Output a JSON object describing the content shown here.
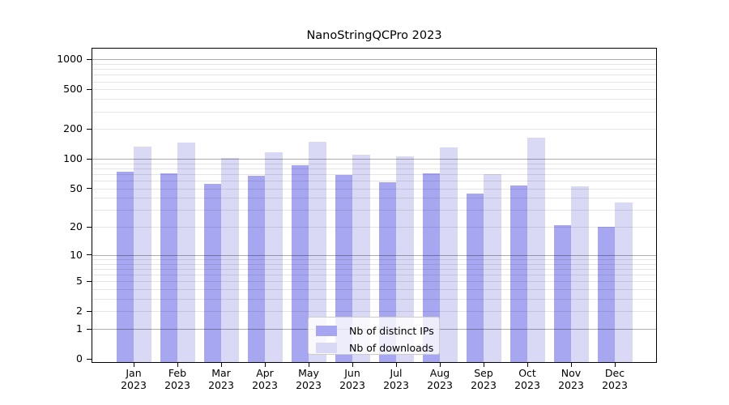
{
  "title": "NanoStringQCPro 2023",
  "chart_data": {
    "type": "bar",
    "title": "NanoStringQCPro 2023",
    "x_year": "2023",
    "categories": [
      "Jan",
      "Feb",
      "Mar",
      "Apr",
      "May",
      "Jun",
      "Jul",
      "Aug",
      "Sep",
      "Oct",
      "Nov",
      "Dec"
    ],
    "series": [
      {
        "name": "Nb of distinct IPs",
        "color": "#a6a6f1",
        "values": [
          74,
          71,
          56,
          67,
          86,
          69,
          58,
          71,
          44,
          54,
          21,
          20
        ]
      },
      {
        "name": "Nb of downloads",
        "color": "#d9d9f6",
        "values": [
          133,
          146,
          103,
          117,
          149,
          110,
          106,
          130,
          70,
          164,
          53,
          36
        ]
      }
    ],
    "y_ticks": [
      0,
      1,
      2,
      5,
      10,
      20,
      50,
      100,
      200,
      500,
      1000
    ],
    "y_scale": "log1p",
    "ylim": [
      0,
      1150
    ],
    "xlabel": "",
    "ylabel": "",
    "grid": true,
    "legend_position": "bottom-center"
  }
}
